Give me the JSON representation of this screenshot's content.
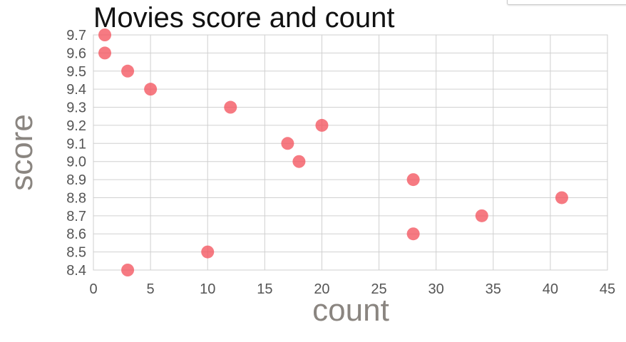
{
  "chart_data": {
    "type": "scatter",
    "title": "Movies score and count",
    "xlabel": "count",
    "ylabel": "score",
    "xlim": [
      0,
      45
    ],
    "ylim": [
      8.4,
      9.7
    ],
    "x_ticks": [
      0,
      5,
      10,
      15,
      20,
      25,
      30,
      35,
      40,
      45
    ],
    "y_ticks": [
      "8.4",
      "8.5",
      "8.6",
      "8.7",
      "8.8",
      "8.9",
      "9.0",
      "9.1",
      "9.2",
      "9.3",
      "9.4",
      "9.5",
      "9.6",
      "9.7"
    ],
    "grid": true,
    "color": "#f4555f",
    "points": [
      {
        "x": 1,
        "y": 9.7
      },
      {
        "x": 1,
        "y": 9.6
      },
      {
        "x": 3,
        "y": 9.5
      },
      {
        "x": 5,
        "y": 9.4
      },
      {
        "x": 12,
        "y": 9.3
      },
      {
        "x": 20,
        "y": 9.2
      },
      {
        "x": 17,
        "y": 9.1
      },
      {
        "x": 18,
        "y": 9.0
      },
      {
        "x": 28,
        "y": 8.9
      },
      {
        "x": 41,
        "y": 8.8
      },
      {
        "x": 34,
        "y": 8.7
      },
      {
        "x": 28,
        "y": 8.6
      },
      {
        "x": 10,
        "y": 8.5
      },
      {
        "x": 3,
        "y": 8.4
      }
    ]
  }
}
